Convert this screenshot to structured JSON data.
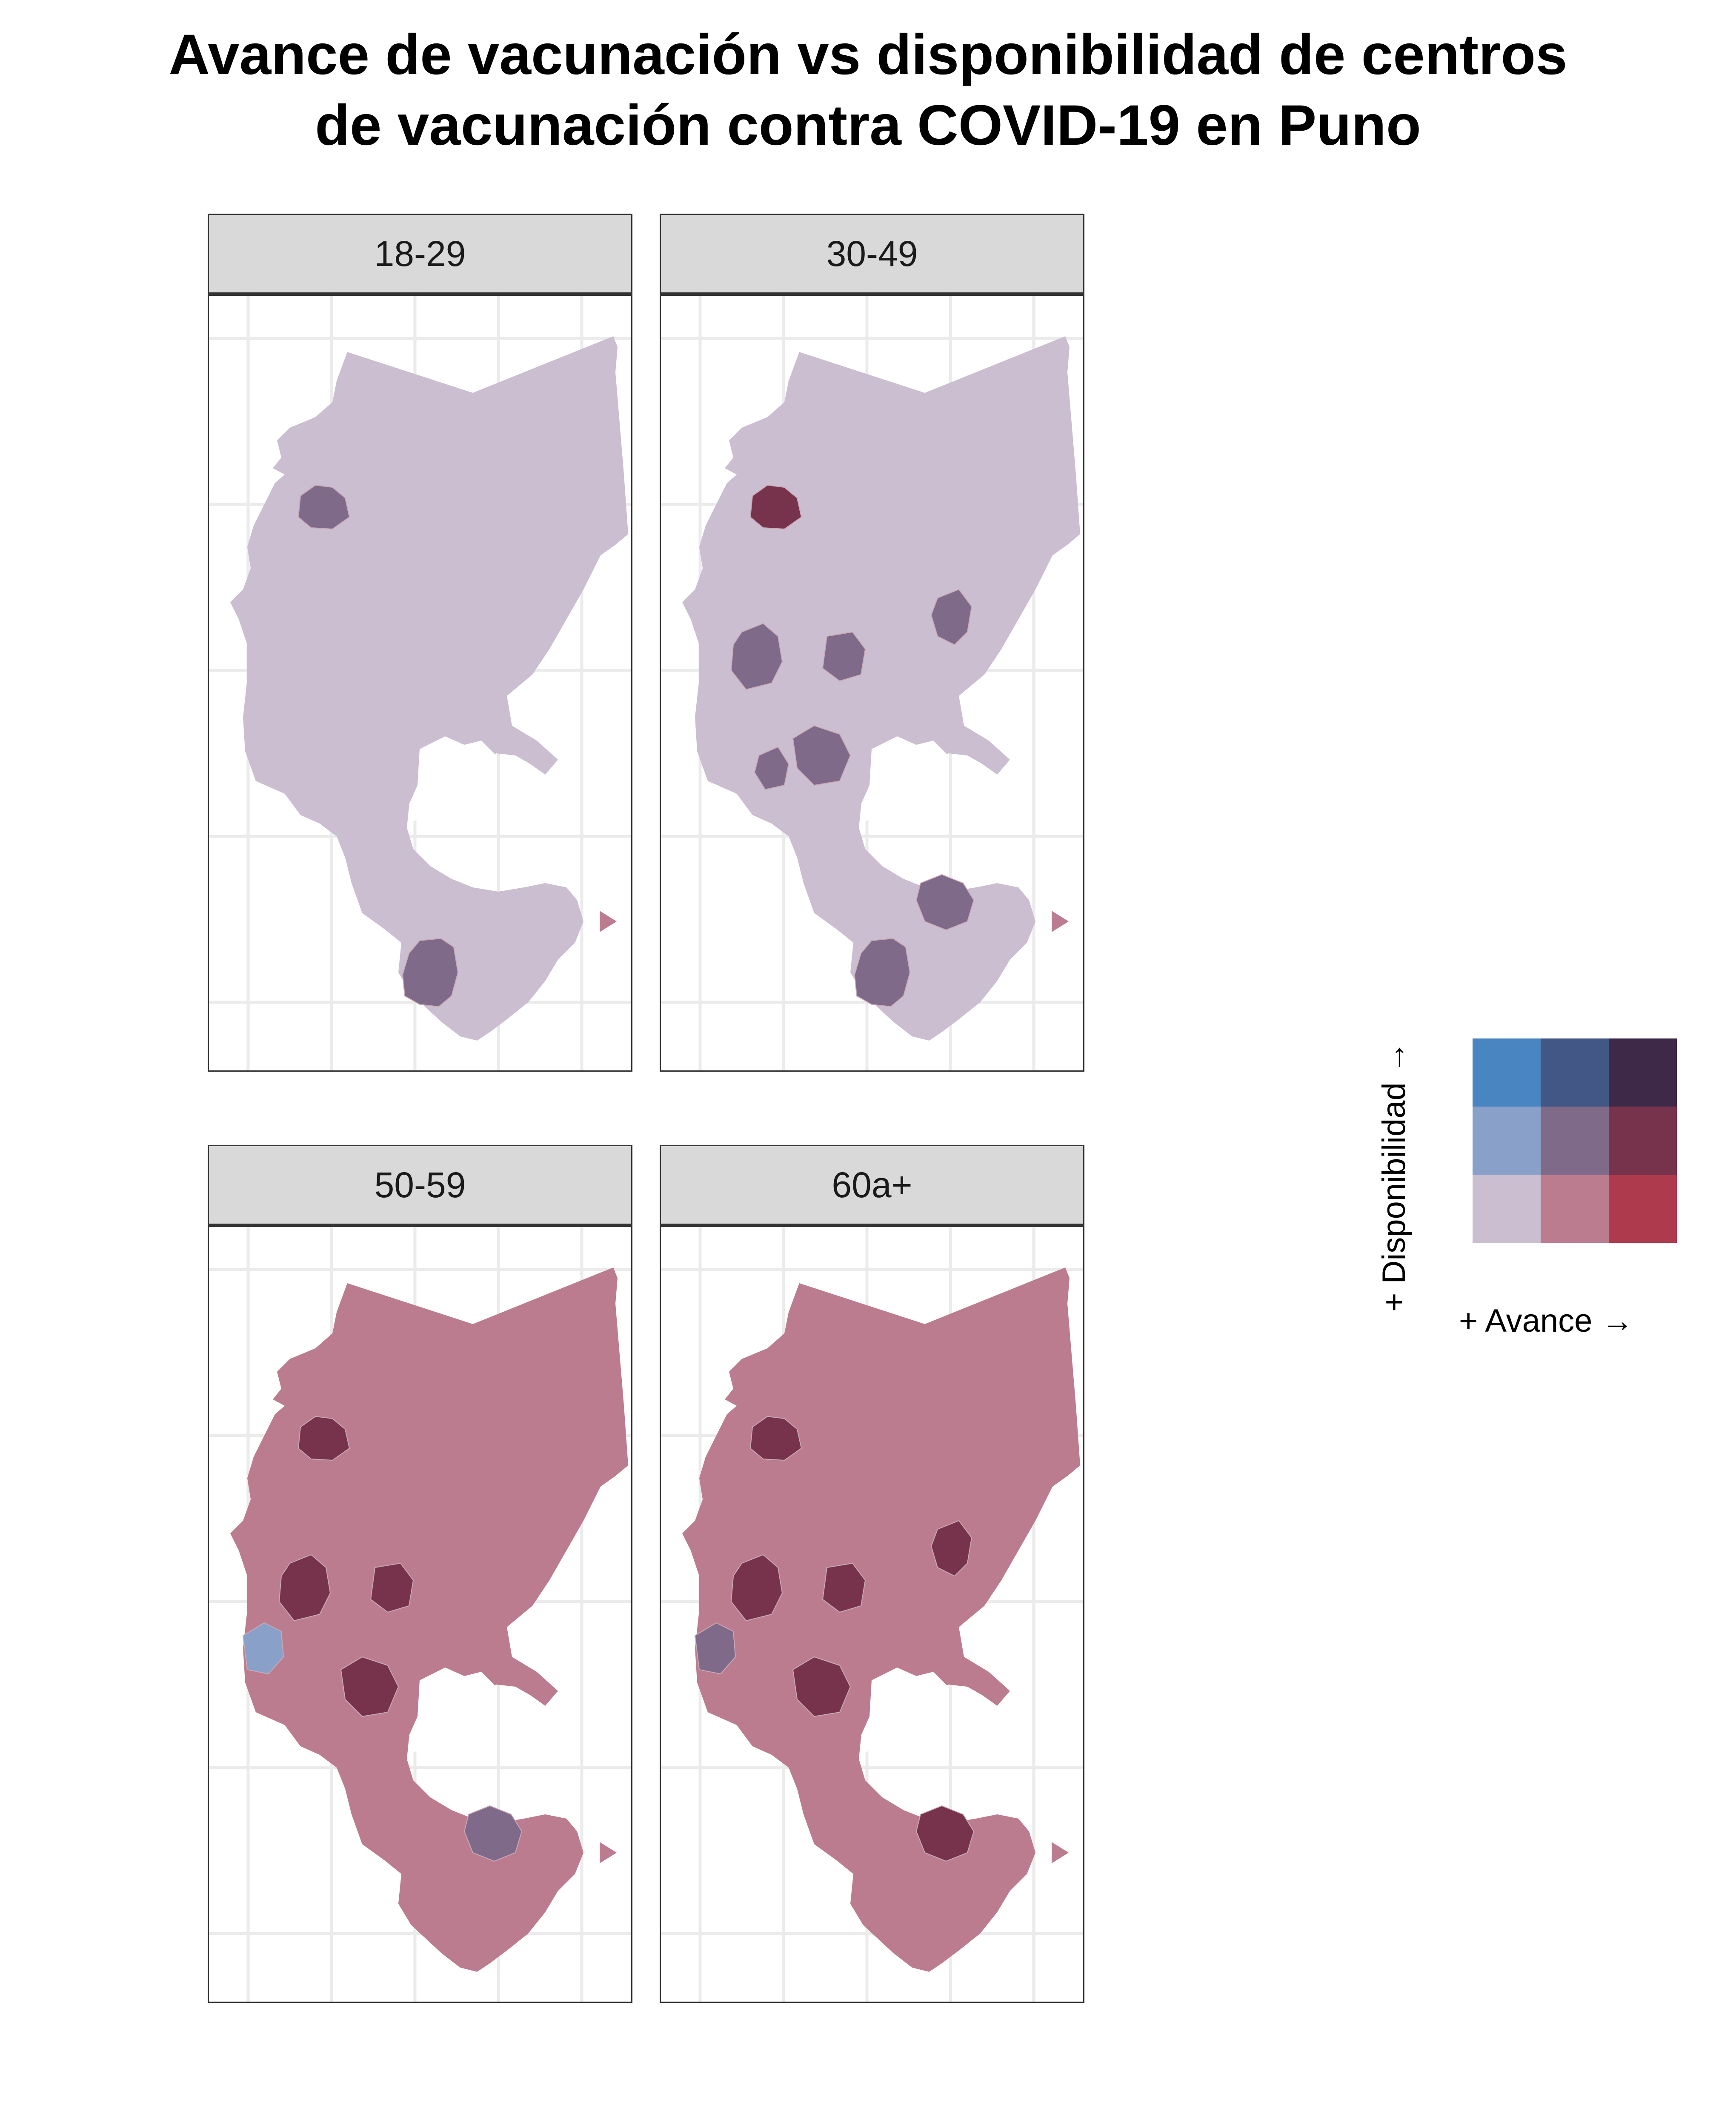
{
  "title_line1": "Avance de vacunación vs disponibilidad de centros",
  "title_line2": "de vacunación contra COVID-19 en Puno",
  "panels": [
    {
      "label": "18-29",
      "region_classes": [
        [
          0,
          0
        ],
        [
          1,
          0
        ],
        [
          1,
          0
        ]
      ]
    },
    {
      "label": "30-49",
      "region_classes": [
        [
          0,
          0
        ],
        [
          1,
          0
        ],
        [
          2,
          0
        ]
      ]
    },
    {
      "label": "50-59",
      "region_classes": [
        [
          1,
          0
        ],
        [
          1,
          0
        ],
        [
          2,
          0
        ]
      ]
    },
    {
      "label": "60a+",
      "region_classes": [
        [
          1,
          0
        ],
        [
          1,
          0
        ],
        [
          2,
          0
        ]
      ]
    }
  ],
  "legend": {
    "x_label": "+ Avance  →",
    "y_label": "+ Disponibilidad  →",
    "colors": [
      [
        "#CABED0",
        "#BC7C8F",
        "#AE3A4E"
      ],
      [
        "#89A1C8",
        "#806A8A",
        "#77324C"
      ],
      [
        "#4885C1",
        "#435786",
        "#3F2949"
      ]
    ]
  }
}
